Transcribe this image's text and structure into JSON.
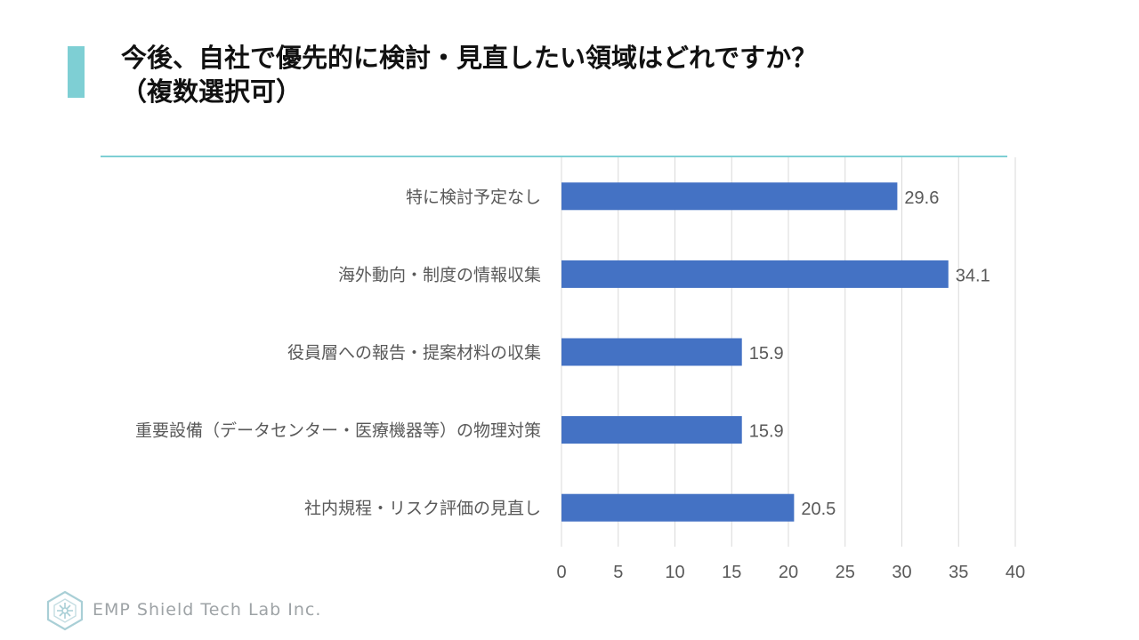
{
  "page": {
    "title": "今後、自社で優先的に検討・見直したい領域はどれですか？\n（複数選択可）",
    "footer_text": "EMP Shield Tech Lab Inc.",
    "footer_logo_icon": "emp-shield-hexagon-logo"
  },
  "colors": {
    "accent": "#7ecfd4",
    "divider": "#7ecfd4",
    "bar": "#4472c4",
    "grid": "#d9d9d9",
    "text": "#595959"
  },
  "chart_data": {
    "type": "bar",
    "orientation": "horizontal",
    "categories": [
      "特に検討予定なし",
      "海外動向・制度の情報収集",
      "役員層への報告・提案材料の収集",
      "重要設備（データセンター・医療機器等）の物理対策",
      "社内規程・リスク評価の見直し"
    ],
    "values": [
      29.6,
      34.1,
      15.9,
      15.9,
      20.5
    ],
    "value_labels": [
      "29.6",
      "34.1",
      "15.9",
      "15.9",
      "20.5"
    ],
    "xlim": [
      0,
      40
    ],
    "xticks": [
      0,
      5,
      10,
      15,
      20,
      25,
      30,
      35,
      40
    ],
    "grid": true,
    "legend": false
  }
}
